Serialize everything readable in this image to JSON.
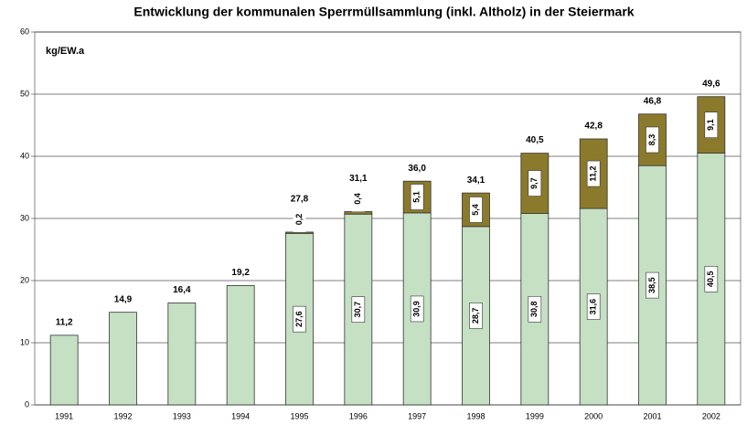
{
  "chart_data": {
    "type": "stacked-bar",
    "title": "Entwicklung der kommunalen Sperrmüllsammlung (inkl. Altholz) in der Steiermark",
    "y_label": "kg/EW.a",
    "categories": [
      "1991",
      "1992",
      "1993",
      "1994",
      "1995",
      "1996",
      "1997",
      "1998",
      "1999",
      "2000",
      "2001",
      "2002"
    ],
    "series": [
      {
        "color": "#c5e0c3",
        "values": [
          11.2,
          14.9,
          16.4,
          19.2,
          27.6,
          30.7,
          30.9,
          28.7,
          30.8,
          31.6,
          38.5,
          40.5
        ],
        "value_labels": [
          null,
          null,
          null,
          null,
          "27,6",
          "30,7",
          "30,9",
          "28,7",
          "30,8",
          "31,6",
          "38,5",
          "40,5"
        ]
      },
      {
        "color": "#8c7a2c",
        "values": [
          null,
          null,
          null,
          null,
          0.2,
          0.4,
          5.1,
          5.4,
          9.7,
          11.2,
          8.3,
          9.1
        ],
        "value_labels": [
          null,
          null,
          null,
          null,
          "0,2",
          "0,4",
          "5,1",
          "5,4",
          "9,7",
          "11,2",
          "8,3",
          "9,1"
        ]
      }
    ],
    "totals": {
      "values": [
        11.2,
        14.9,
        16.4,
        19.2,
        27.8,
        31.1,
        36.0,
        34.1,
        40.5,
        42.8,
        46.8,
        49.6
      ],
      "value_labels": [
        "11,2",
        "14,9",
        "16,4",
        "19,2",
        "27,8",
        "31,1",
        "36,0",
        "34,1",
        "40,5",
        "42,8",
        "46,8",
        "49,6"
      ]
    },
    "ylim": [
      0,
      60
    ],
    "yticks": [
      0,
      10,
      20,
      30,
      40,
      50,
      60
    ],
    "grid": true
  }
}
